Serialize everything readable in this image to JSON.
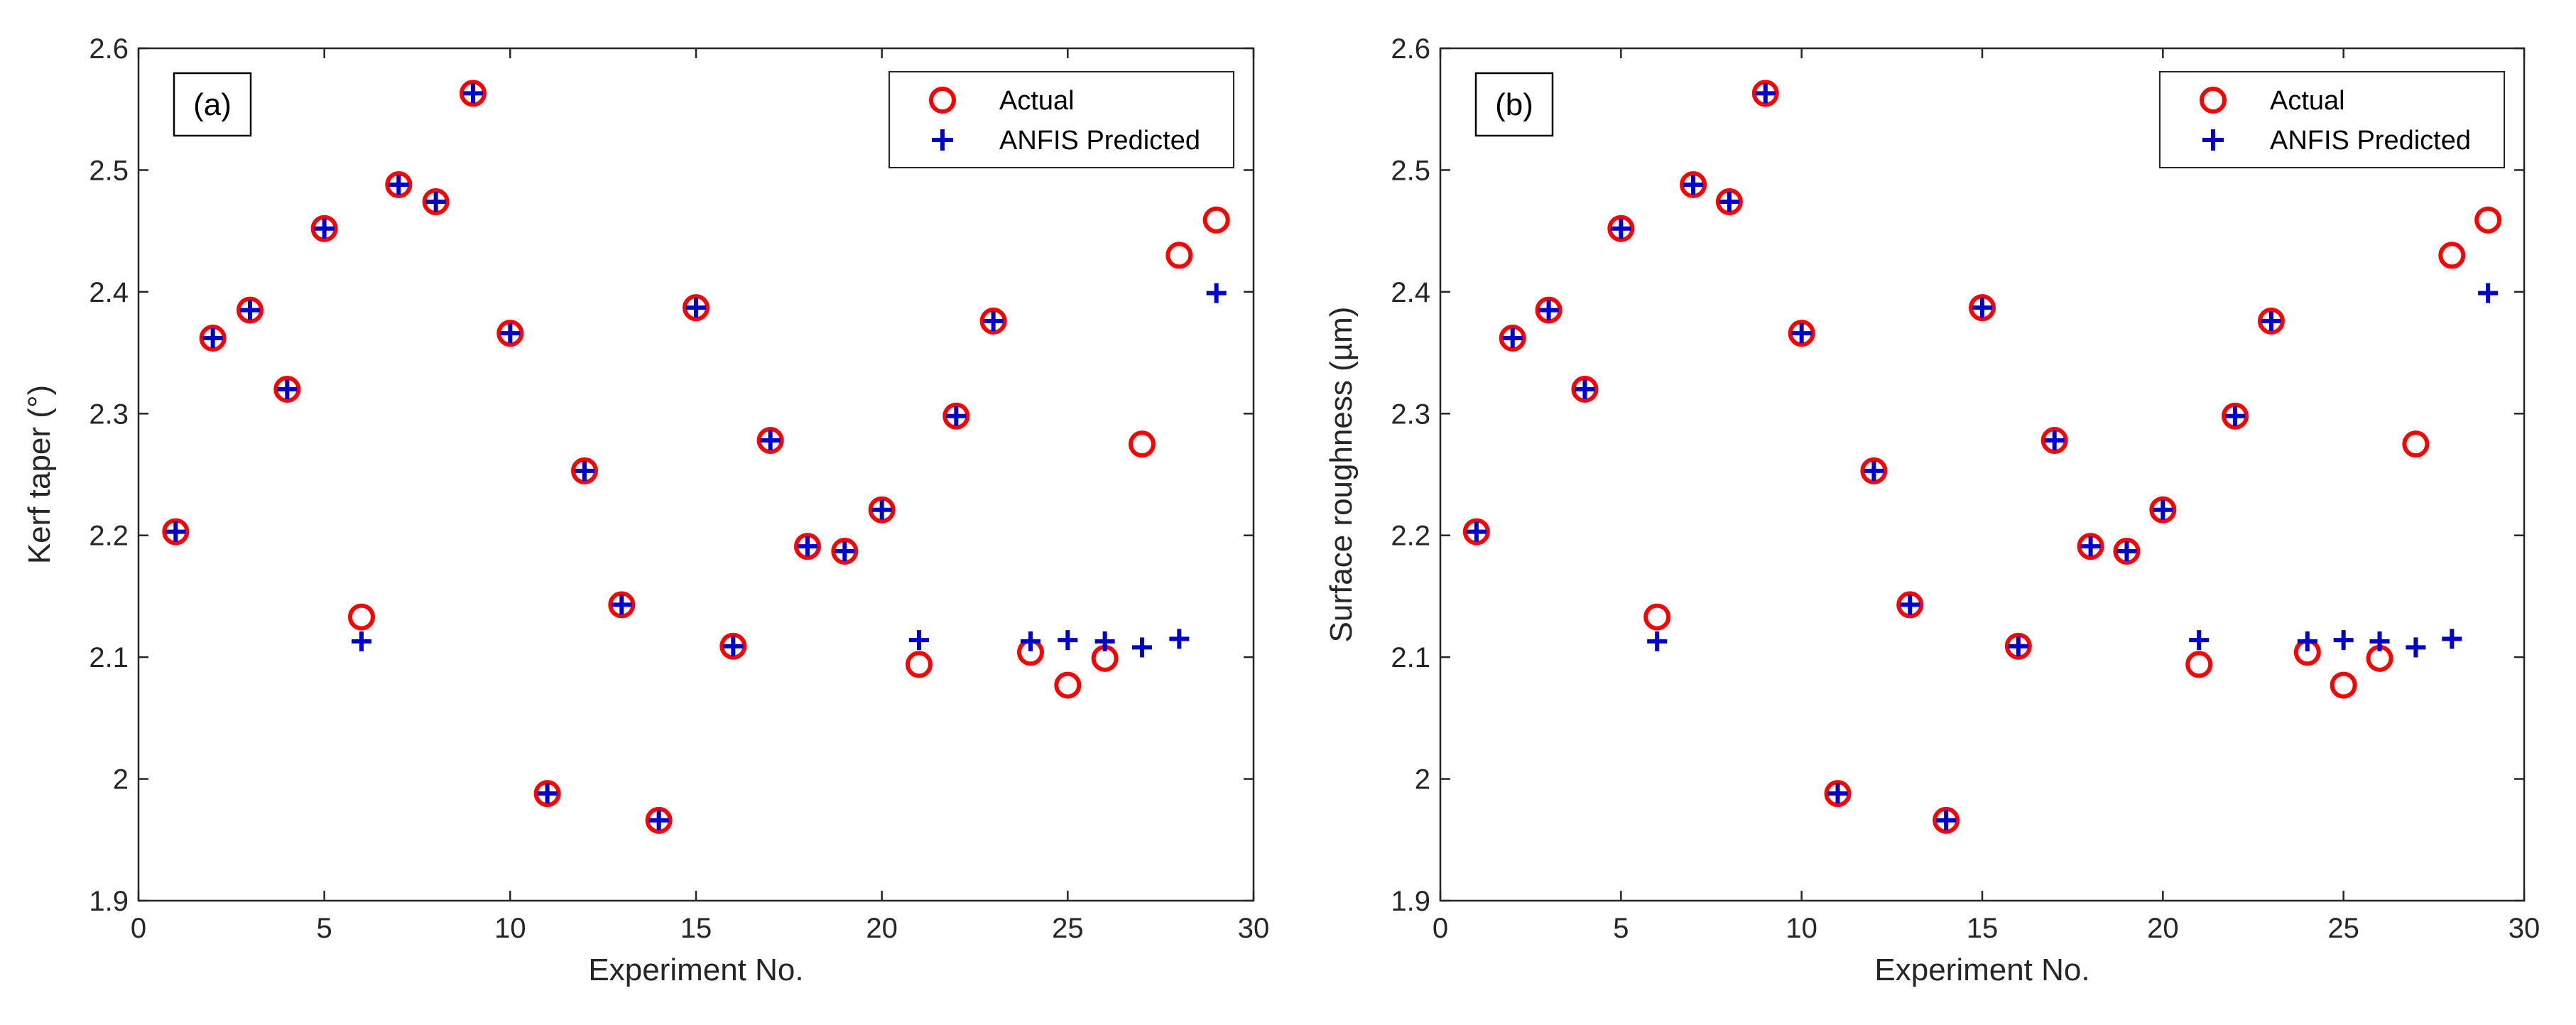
{
  "colors": {
    "actual": "#ff0000",
    "predicted": "#0000cc"
  },
  "chart_data": [
    {
      "type": "scatter",
      "panel_label": "(a)",
      "xlabel": "Experiment No.",
      "ylabel": "Kerf taper (°)",
      "xlim": [
        0,
        30
      ],
      "ylim": [
        1.9,
        2.6
      ],
      "x_ticks": [
        0,
        5,
        10,
        15,
        20,
        25,
        30
      ],
      "x_tick_labels": [
        "0",
        "5",
        "10",
        "15",
        "20",
        "25",
        "30"
      ],
      "y_ticks": [
        1.9,
        2.0,
        2.1,
        2.2,
        2.3,
        2.4,
        2.5,
        2.6
      ],
      "y_tick_labels": [
        "1.9",
        "2",
        "2.1",
        "2.2",
        "2.3",
        "2.4",
        "2.5",
        "2.6"
      ],
      "legend_position": "top-right",
      "x": [
        1,
        2,
        3,
        4,
        5,
        6,
        7,
        8,
        9,
        10,
        11,
        12,
        13,
        14,
        15,
        16,
        17,
        18,
        19,
        20,
        21,
        22,
        23,
        24,
        25,
        26,
        27,
        28,
        29
      ],
      "series": [
        {
          "name": "Actual",
          "marker": "circle",
          "values": [
            2.203,
            2.362,
            2.385,
            2.32,
            2.452,
            2.133,
            2.488,
            2.474,
            2.563,
            2.366,
            1.988,
            2.253,
            2.143,
            1.966,
            2.387,
            2.109,
            2.278,
            2.191,
            2.187,
            2.221,
            2.094,
            2.298,
            2.376,
            2.104,
            2.077,
            2.099,
            2.275,
            2.43,
            2.459
          ]
        },
        {
          "name": "ANFIS Predicted",
          "marker": "plus",
          "values": [
            2.203,
            2.362,
            2.385,
            2.32,
            2.452,
            2.113,
            2.488,
            2.474,
            2.563,
            2.366,
            1.988,
            2.253,
            2.143,
            1.966,
            2.387,
            2.109,
            2.278,
            2.191,
            2.187,
            2.221,
            2.114,
            2.298,
            2.376,
            2.113,
            2.114,
            2.113,
            2.108,
            2.115,
            2.399
          ]
        }
      ]
    },
    {
      "type": "scatter",
      "panel_label": "(b)",
      "xlabel": "Experiment No.",
      "ylabel": "Surface roughness (µm)",
      "xlim": [
        0,
        30
      ],
      "ylim": [
        1.9,
        2.6
      ],
      "x_ticks": [
        0,
        5,
        10,
        15,
        20,
        25,
        30
      ],
      "x_tick_labels": [
        "0",
        "5",
        "10",
        "15",
        "20",
        "25",
        "30"
      ],
      "y_ticks": [
        1.9,
        2.0,
        2.1,
        2.2,
        2.3,
        2.4,
        2.5,
        2.6
      ],
      "y_tick_labels": [
        "1.9",
        "2",
        "2.1",
        "2.2",
        "2.3",
        "2.4",
        "2.5",
        "2.6"
      ],
      "legend_position": "top-right",
      "x": [
        1,
        2,
        3,
        4,
        5,
        6,
        7,
        8,
        9,
        10,
        11,
        12,
        13,
        14,
        15,
        16,
        17,
        18,
        19,
        20,
        21,
        22,
        23,
        24,
        25,
        26,
        27,
        28,
        29
      ],
      "series": [
        {
          "name": "Actual",
          "marker": "circle",
          "values": [
            2.203,
            2.362,
            2.385,
            2.32,
            2.452,
            2.133,
            2.488,
            2.474,
            2.563,
            2.366,
            1.988,
            2.253,
            2.143,
            1.966,
            2.387,
            2.109,
            2.278,
            2.191,
            2.187,
            2.221,
            2.094,
            2.298,
            2.376,
            2.104,
            2.077,
            2.099,
            2.275,
            2.43,
            2.459
          ]
        },
        {
          "name": "ANFIS Predicted",
          "marker": "plus",
          "values": [
            2.203,
            2.362,
            2.385,
            2.32,
            2.452,
            2.113,
            2.488,
            2.474,
            2.563,
            2.366,
            1.988,
            2.253,
            2.143,
            1.966,
            2.387,
            2.109,
            2.278,
            2.191,
            2.187,
            2.221,
            2.114,
            2.298,
            2.376,
            2.113,
            2.114,
            2.113,
            2.108,
            2.115,
            2.399
          ]
        }
      ]
    }
  ]
}
